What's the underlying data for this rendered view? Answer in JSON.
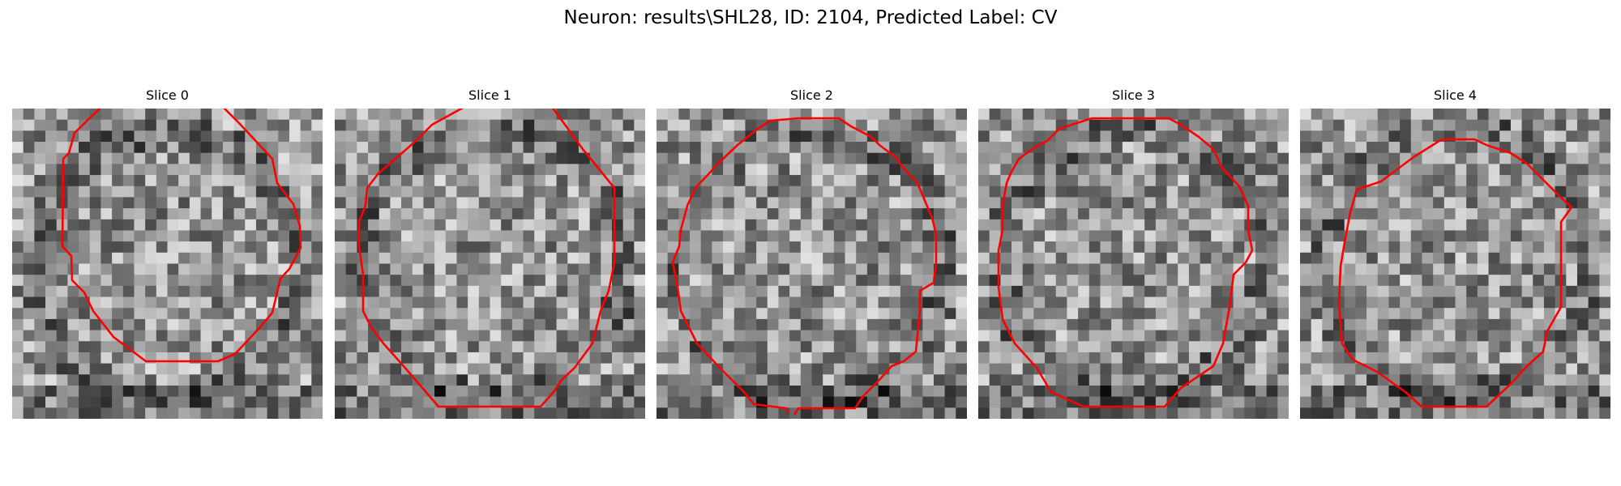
{
  "figure": {
    "title": "Neuron: results\\SHL28, ID: 2104, Predicted Label: CV",
    "contour_color": "#ff0000"
  },
  "panels": [
    {
      "title": "Slice 0"
    },
    {
      "title": "Slice 1"
    },
    {
      "title": "Slice 2"
    },
    {
      "title": "Slice 3"
    },
    {
      "title": "Slice 4"
    }
  ]
}
